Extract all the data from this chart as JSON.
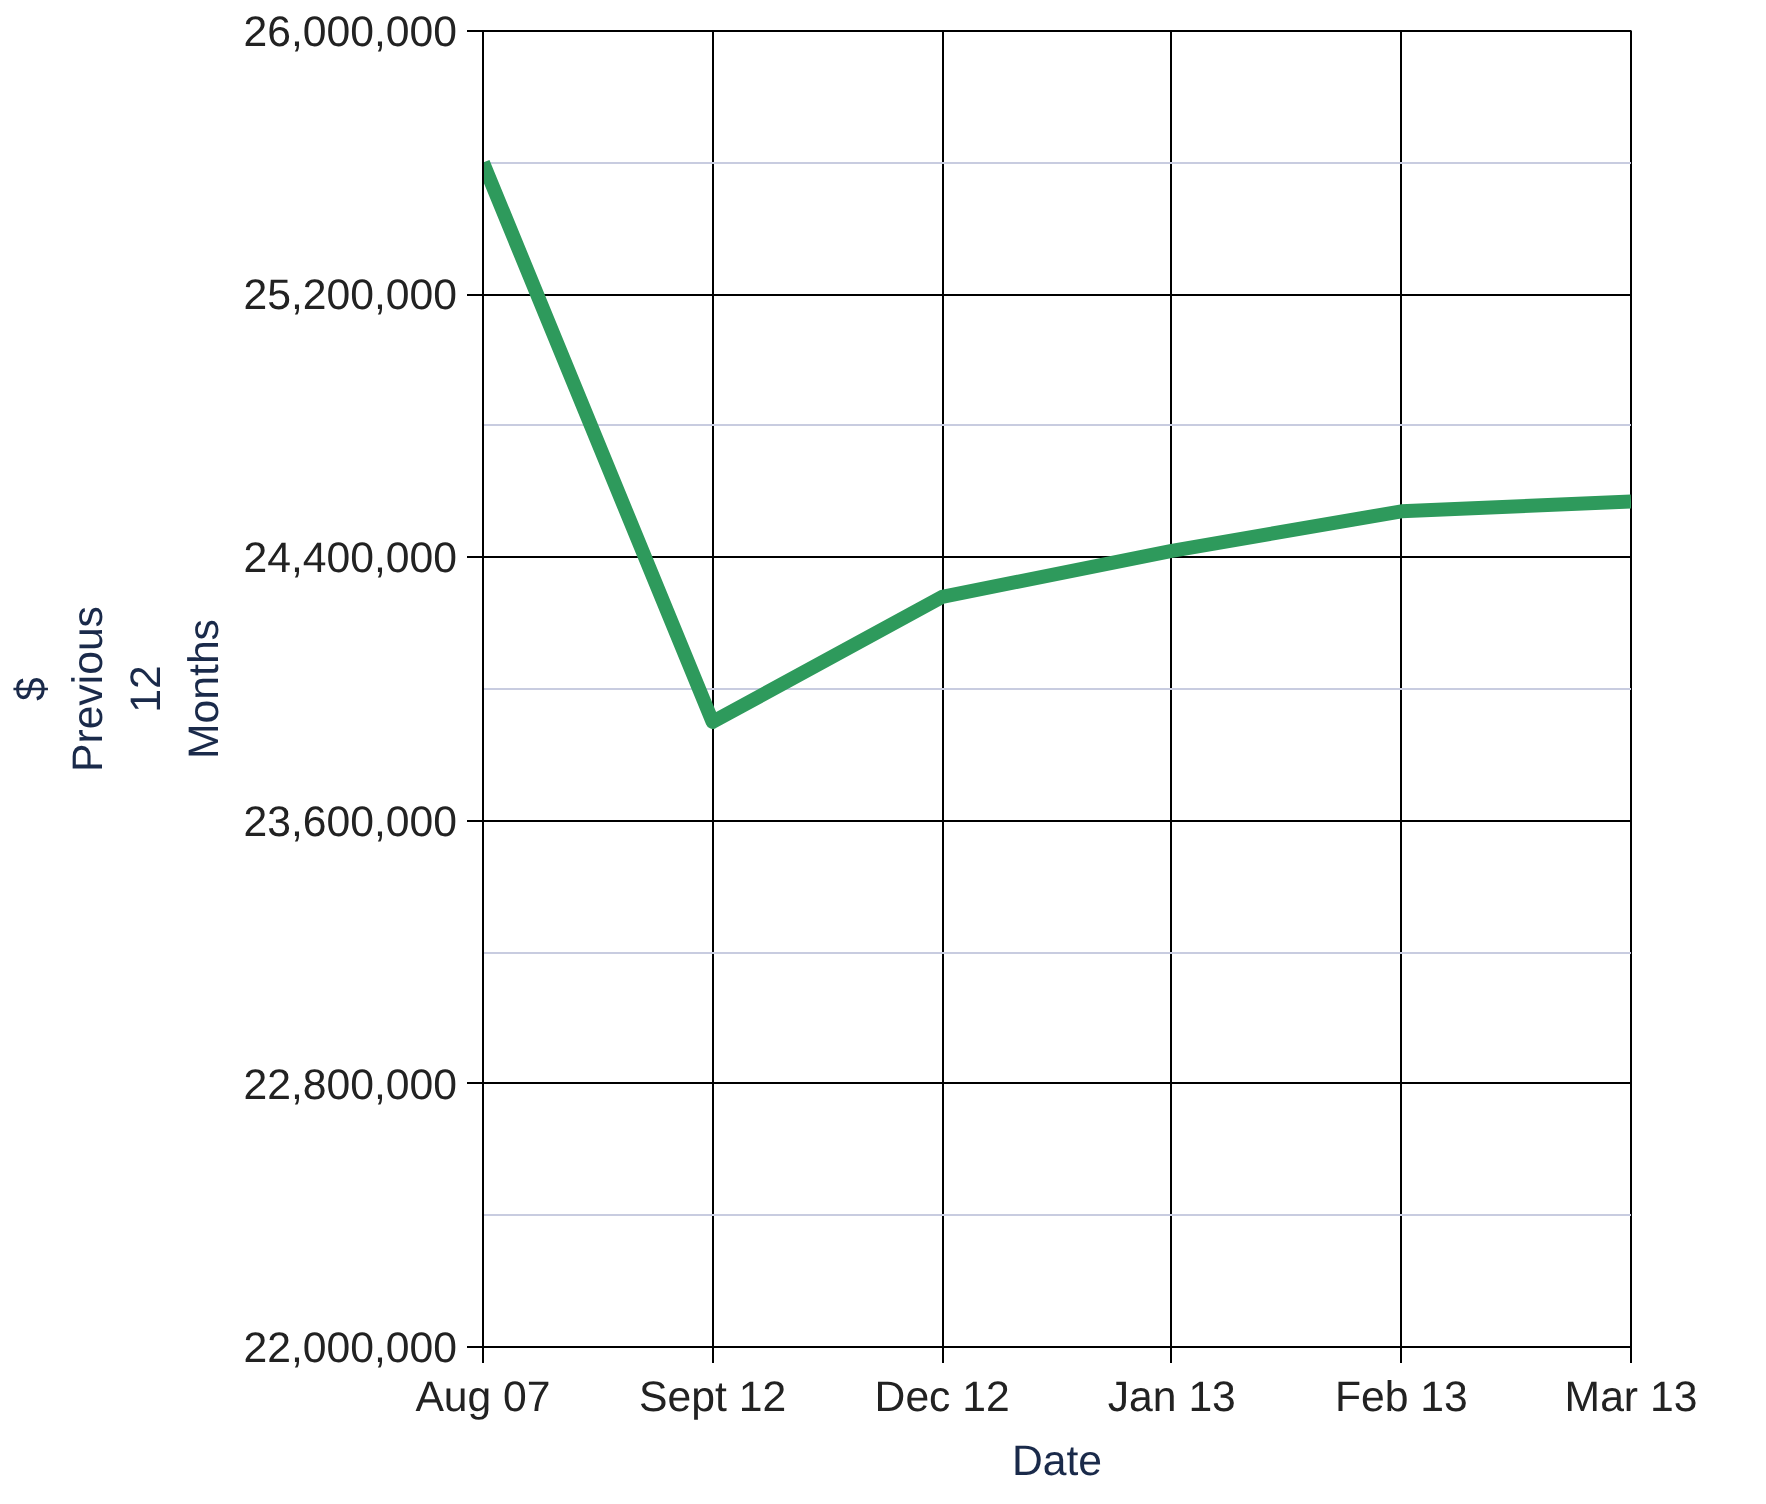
{
  "chart_data": {
    "type": "line",
    "categories": [
      "Aug 07",
      "Sept 12",
      "Dec 12",
      "Jan 13",
      "Feb 13",
      "Mar 13"
    ],
    "series": [
      {
        "color": "#2e9a5c",
        "values": [
          25600000,
          23900000,
          24280000,
          24420000,
          24540000,
          24570000
        ]
      }
    ],
    "ylim": [
      22000000,
      26000000
    ],
    "yticks": [
      {
        "value": 22000000,
        "label": "22,000,000"
      },
      {
        "value": 22800000,
        "label": "22,800,000"
      },
      {
        "value": 23600000,
        "label": "23,600,000"
      },
      {
        "value": 24400000,
        "label": "24,400,000"
      },
      {
        "value": 25200000,
        "label": "25,200,000"
      },
      {
        "value": 26000000,
        "label": "26,000,000"
      }
    ],
    "xlabel": "Date",
    "ylabel": "$\nPrevious\n12\nMonths",
    "grid": true,
    "marker": "none",
    "line_style": "solid"
  }
}
